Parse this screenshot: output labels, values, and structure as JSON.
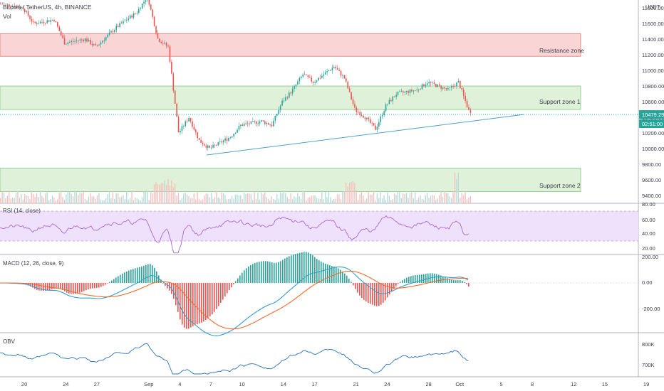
{
  "header": {
    "symbol_line": "Bitcoin / TetherUS, 4h, BINANCE",
    "vol_label": "Vol"
  },
  "price_axis": {
    "currency": "USDT",
    "ticks": [
      "11800.00",
      "11600.00",
      "11400.00",
      "11200.00",
      "11000.00",
      "10800.00",
      "10600.00",
      "10400.00",
      "10200.00",
      "10000.00",
      "9800.00",
      "9600.00",
      "9400.00"
    ],
    "last_price": "10479.29",
    "countdown": "02:51:00",
    "last_price_color": "#26a69a"
  },
  "zones": [
    {
      "label": "Resistance zone",
      "low": 11180,
      "high": 11470,
      "fill": "#f9d6d5",
      "border": "#e57373"
    },
    {
      "label": "Support zone 1",
      "low": 10500,
      "high": 10800,
      "fill": "#dff1d8",
      "border": "#81c784"
    },
    {
      "label": "Support zone 2",
      "low": 9450,
      "high": 9750,
      "fill": "#dff1d8",
      "border": "#81c784"
    }
  ],
  "trendline": {
    "from": {
      "x": "Sep 8",
      "y": 9980
    },
    "to": {
      "x": "Oct 8",
      "y": 10480
    },
    "color": "#4fa3c7"
  },
  "panes": {
    "rsi": {
      "label": "RSI (14, close)",
      "ticks": [
        "80.00",
        "60.00",
        "40.00",
        "20.00"
      ],
      "band": [
        30,
        70
      ]
    },
    "macd": {
      "label": "MACD (12, 26, close, 9)",
      "ticks": [
        "200.00",
        "0.00",
        "-200.00"
      ]
    },
    "obv": {
      "label": "OBV",
      "ticks": [
        "800K",
        "700K"
      ]
    }
  },
  "time_axis": {
    "ticks": [
      "20",
      "24",
      "27",
      "Sep",
      "4",
      "7",
      "10",
      "14",
      "17",
      "21",
      "24",
      "28",
      "Oct",
      "5",
      "8",
      "12",
      "15",
      "19"
    ]
  },
  "chart_data": {
    "type": "line",
    "title": "Bitcoin / TetherUS, 4h, BINANCE",
    "x_range": [
      "Aug 18",
      "Oct 19"
    ],
    "y_range": [
      9300,
      11900
    ],
    "last_price": 10479.29,
    "price_path": [
      {
        "x": "Aug 18",
        "y": 11850
      },
      {
        "x": "Aug 20",
        "y": 11800
      },
      {
        "x": "Aug 21",
        "y": 11600
      },
      {
        "x": "Aug 23",
        "y": 11650
      },
      {
        "x": "Aug 24",
        "y": 11350
      },
      {
        "x": "Aug 26",
        "y": 11400
      },
      {
        "x": "Aug 27",
        "y": 11300
      },
      {
        "x": "Aug 29",
        "y": 11550
      },
      {
        "x": "Aug 31",
        "y": 11750
      },
      {
        "x": "Sep 1",
        "y": 11950
      },
      {
        "x": "Sep 2",
        "y": 11400
      },
      {
        "x": "Sep 3",
        "y": 11300
      },
      {
        "x": "Sep 4",
        "y": 10200
      },
      {
        "x": "Sep 5",
        "y": 10400
      },
      {
        "x": "Sep 6",
        "y": 10100
      },
      {
        "x": "Sep 7",
        "y": 10000
      },
      {
        "x": "Sep 9",
        "y": 10150
      },
      {
        "x": "Sep 10",
        "y": 10300
      },
      {
        "x": "Sep 12",
        "y": 10350
      },
      {
        "x": "Sep 13",
        "y": 10300
      },
      {
        "x": "Sep 14",
        "y": 10600
      },
      {
        "x": "Sep 15",
        "y": 10750
      },
      {
        "x": "Sep 16",
        "y": 10950
      },
      {
        "x": "Sep 17",
        "y": 10850
      },
      {
        "x": "Sep 19",
        "y": 11050
      },
      {
        "x": "Sep 20",
        "y": 10900
      },
      {
        "x": "Sep 21",
        "y": 10500
      },
      {
        "x": "Sep 22",
        "y": 10400
      },
      {
        "x": "Sep 23",
        "y": 10250
      },
      {
        "x": "Sep 24",
        "y": 10550
      },
      {
        "x": "Sep 25",
        "y": 10700
      },
      {
        "x": "Sep 27",
        "y": 10750
      },
      {
        "x": "Sep 28",
        "y": 10850
      },
      {
        "x": "Sep 29",
        "y": 10800
      },
      {
        "x": "Sep 30",
        "y": 10750
      },
      {
        "x": "Oct 1",
        "y": 10850
      },
      {
        "x": "Oct 2",
        "y": 10479.29
      }
    ],
    "volume_peaks": [
      {
        "x": "Sep 3",
        "note": "spike"
      },
      {
        "x": "Sep 21",
        "note": "spike"
      },
      {
        "x": "Oct 1",
        "note": "spike"
      }
    ],
    "rsi": {
      "range": [
        10,
        85
      ],
      "band": [
        30,
        70
      ]
    },
    "macd": {
      "range": [
        -280,
        220
      ]
    },
    "obv": {
      "range": [
        "660K",
        "830K"
      ]
    }
  }
}
